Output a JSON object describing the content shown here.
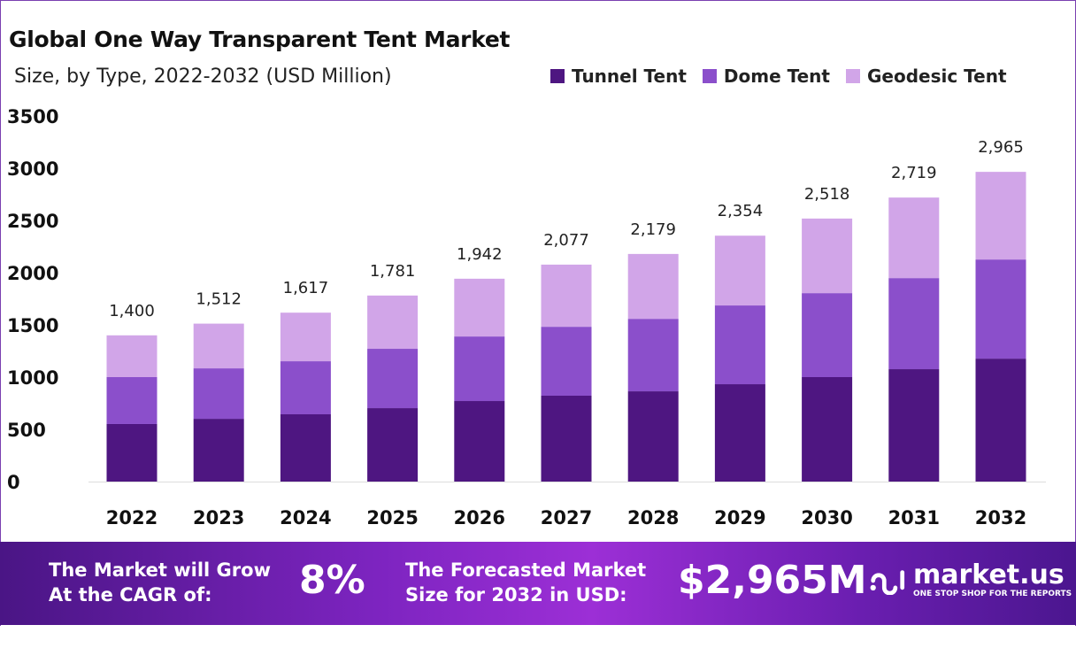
{
  "chart_data": {
    "type": "bar",
    "stacked": true,
    "title": "Global One Way Transparent Tent Market",
    "subtitle": "Size, by Type, 2022-2032 (USD Million)",
    "categories": [
      "2022",
      "2023",
      "2024",
      "2025",
      "2026",
      "2027",
      "2028",
      "2029",
      "2030",
      "2031",
      "2032"
    ],
    "series": [
      {
        "name": "Tunnel Tent",
        "color": "#4e1681",
        "values": [
          551,
          601,
          644,
          703,
          771,
          822,
          864,
          932,
          1000,
          1076,
          1177
        ]
      },
      {
        "name": "Dome Tent",
        "color": "#8b4fcb",
        "values": [
          449,
          483,
          508,
          568,
          618,
          660,
          694,
          754,
          804,
          872,
          949
        ]
      },
      {
        "name": "Geodesic Tent",
        "color": "#d1a5e8",
        "values": [
          400,
          428,
          465,
          510,
          553,
          595,
          621,
          668,
          714,
          771,
          839
        ]
      }
    ],
    "totals": [
      "1,400",
      "1,512",
      "1,617",
      "1,781",
      "1,942",
      "2,077",
      "2,179",
      "2,354",
      "2,518",
      "2,719",
      "2,965"
    ],
    "yticks": [
      "0",
      "500",
      "1000",
      "1500",
      "2000",
      "2500",
      "3000",
      "3500"
    ],
    "ylim": [
      0,
      3500
    ],
    "grid": false,
    "legend": "top-right"
  },
  "banner": {
    "cagr_label": "The Market will Grow At the CAGR of:",
    "cagr_value": "8%",
    "forecast_label": "The Forecasted Market Size for 2032 in USD:",
    "forecast_value": "$2,965M",
    "logo_name": "market.us",
    "logo_tagline": "ONE STOP SHOP FOR THE REPORTS"
  }
}
